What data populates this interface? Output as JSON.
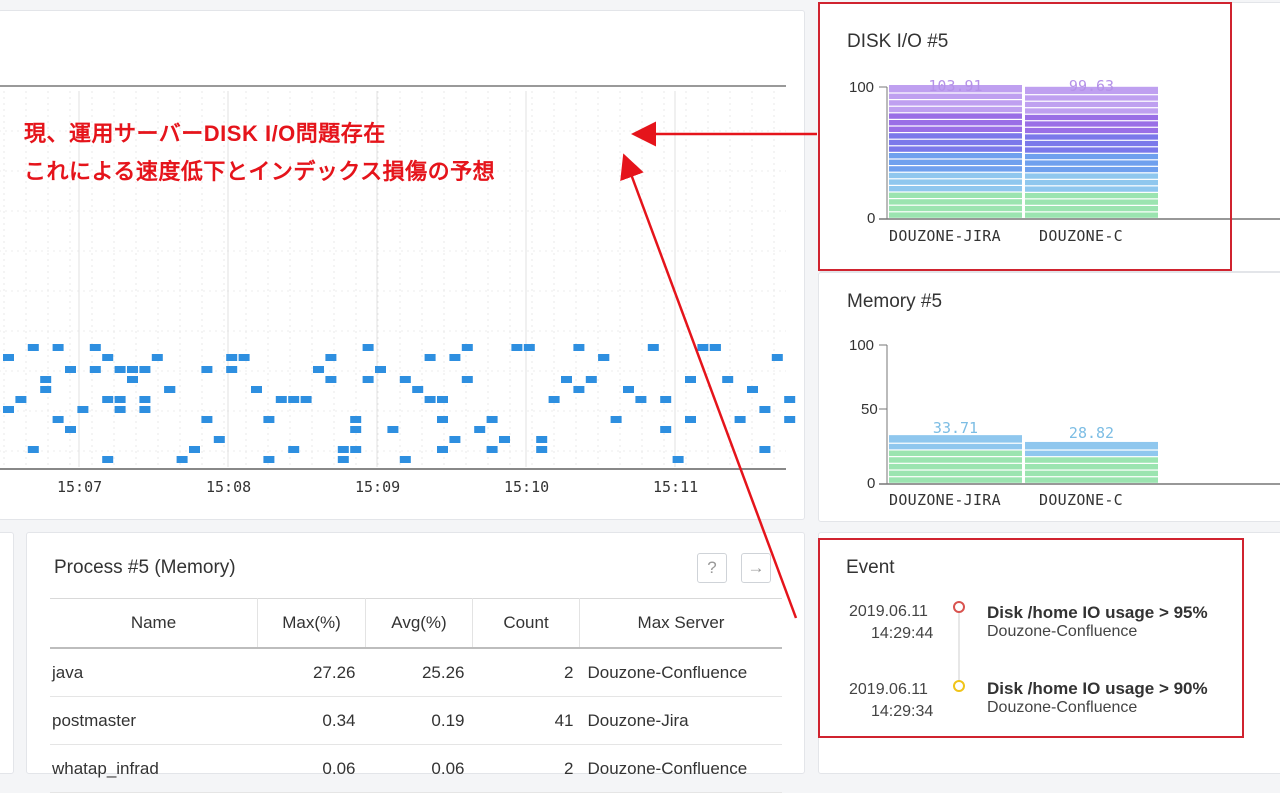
{
  "timeline": {
    "x_ticks": [
      "15:07",
      "15:08",
      "15:09",
      "15:10",
      "15:11"
    ]
  },
  "annotation": {
    "line1": "現、運用サーバーDISK I/O問題存在",
    "line2": "これによる速度低下とインデックス損傷の予想"
  },
  "disk_io": {
    "title": "DISK I/O #5",
    "y_max_label": "100",
    "y_min_label": "0",
    "bars": [
      {
        "server": "DOUZONE-JIRA",
        "value": "103.91",
        "value_num": 103.91
      },
      {
        "server": "DOUZONE-C",
        "value": "99.63",
        "value_num": 99.63
      }
    ]
  },
  "memory": {
    "title": "Memory #5",
    "y_labels": [
      "100",
      "50",
      "0"
    ],
    "bars": [
      {
        "server": "DOUZONE-JIRA",
        "value": "33.71",
        "value_num": 33.71
      },
      {
        "server": "DOUZONE-C",
        "value": "28.82",
        "value_num": 28.82
      }
    ]
  },
  "process": {
    "title": "Process #5 (Memory)",
    "help_icon": "?",
    "arrow_icon": "→",
    "columns": [
      "Name",
      "Max(%)",
      "Avg(%)",
      "Count",
      "Max Server"
    ],
    "rows": [
      [
        "java",
        "27.26",
        "25.26",
        "2",
        "Douzone-Confluence"
      ],
      [
        "postmaster",
        "0.34",
        "0.19",
        "41",
        "Douzone-Jira"
      ],
      [
        "whatap_infrad",
        "0.06",
        "0.06",
        "2",
        "Douzone-Confluence"
      ]
    ]
  },
  "event": {
    "title": "Event",
    "items": [
      {
        "date": "2019.06.11",
        "time": "14:29:44",
        "title": "Disk /home IO usage > 95%",
        "server": "Douzone-Confluence",
        "color": "#d9534f"
      },
      {
        "date": "2019.06.11",
        "time": "14:29:34",
        "title": "Disk /home IO usage > 90%",
        "server": "Douzone-Confluence",
        "color": "#f0c419"
      }
    ]
  },
  "colors": {
    "accent": "#e5141b",
    "dots": "#2e8fe0",
    "disk_gradient": [
      "#bfa0f0",
      "#9a6fe6",
      "#7b78ea",
      "#6fa0ee",
      "#8fc7ee",
      "#9be4b0"
    ]
  }
}
